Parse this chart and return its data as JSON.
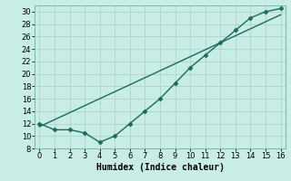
{
  "xlabel": "Humidex (Indice chaleur)",
  "ylabel": "",
  "background_color": "#c8ece6",
  "grid_color": "#b0d8d0",
  "line_color": "#1a6b5a",
  "trend_color": "#1a6b5a",
  "x_data": [
    0,
    1,
    2,
    3,
    4,
    5,
    6,
    7,
    8,
    9,
    10,
    11,
    12,
    13,
    14,
    15,
    16
  ],
  "y_data": [
    12,
    11,
    11,
    10.5,
    9,
    10,
    12,
    14,
    16,
    18.5,
    21,
    23,
    25,
    27,
    29,
    30,
    30.5
  ],
  "trend_x": [
    0,
    16
  ],
  "trend_y": [
    11.5,
    29.5
  ],
  "ylim": [
    8,
    31
  ],
  "xlim": [
    -0.3,
    16.3
  ],
  "yticks": [
    8,
    10,
    12,
    14,
    16,
    18,
    20,
    22,
    24,
    26,
    28,
    30
  ],
  "xticks": [
    0,
    1,
    2,
    3,
    4,
    5,
    6,
    7,
    8,
    9,
    10,
    11,
    12,
    13,
    14,
    15,
    16
  ],
  "marker": "D",
  "marker_size": 2.5,
  "line_width": 1.0,
  "xlabel_fontsize": 7,
  "tick_fontsize": 6
}
